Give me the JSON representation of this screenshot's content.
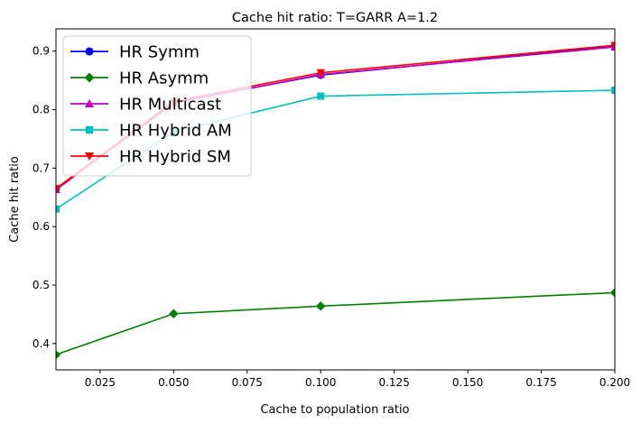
{
  "chart_data": {
    "type": "line",
    "title": "Cache hit ratio: T=GARR A=1.2",
    "xlabel": "Cache to population ratio",
    "ylabel": "Cache hit ratio",
    "xlim": [
      0.01,
      0.2
    ],
    "ylim": [
      0.355,
      0.938
    ],
    "xticks": [
      0.025,
      0.05,
      0.075,
      0.1,
      0.125,
      0.15,
      0.175,
      0.2
    ],
    "xtick_labels": [
      "0.025",
      "0.050",
      "0.075",
      "0.100",
      "0.125",
      "0.150",
      "0.175",
      "0.200"
    ],
    "yticks": [
      0.4,
      0.5,
      0.6,
      0.7,
      0.8,
      0.9
    ],
    "ytick_labels": [
      "0.4",
      "0.5",
      "0.6",
      "0.7",
      "0.8",
      "0.9"
    ],
    "grid": false,
    "legend_position": "upper-left",
    "x": [
      0.01,
      0.05,
      0.1,
      0.2
    ],
    "series": [
      {
        "name": "HR Symm",
        "color": "#0000ff",
        "marker": "circle",
        "values": [
          0.664,
          0.812,
          0.859,
          0.909
        ]
      },
      {
        "name": "HR Asymm",
        "color": "#008000",
        "marker": "diamond",
        "values": [
          0.381,
          0.451,
          0.464,
          0.487
        ]
      },
      {
        "name": "HR Multicast",
        "color": "#bf00bf",
        "marker": "triangle-up",
        "values": [
          0.663,
          0.811,
          0.86,
          0.907
        ]
      },
      {
        "name": "HR Hybrid AM",
        "color": "#00bfbf",
        "marker": "square",
        "values": [
          0.63,
          0.762,
          0.823,
          0.833
        ]
      },
      {
        "name": "HR Hybrid SM",
        "color": "#ff0000",
        "marker": "triangle-down",
        "values": [
          0.665,
          0.814,
          0.863,
          0.91
        ]
      }
    ]
  }
}
